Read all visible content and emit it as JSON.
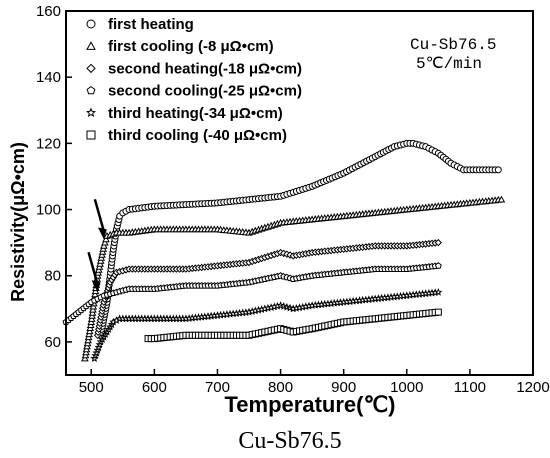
{
  "chart_data": {
    "type": "scatter",
    "xlabel": "Temperature(℃)",
    "ylabel": "Resistivity(μΩ•cm)",
    "xlim": [
      460,
      1200
    ],
    "ylim": [
      50,
      160
    ],
    "x_ticks": [
      "500",
      "600",
      "700",
      "800",
      "900",
      "1000",
      "1100",
      "1200"
    ],
    "y_ticks": [
      "60",
      "80",
      "100",
      "120",
      "140",
      "160"
    ],
    "annotation": [
      "Cu-Sb76.5",
      "5℃/min"
    ],
    "caption": "Cu-Sb76.5",
    "grid": false,
    "legend_position": "top-left",
    "arrows": [
      {
        "x": 520,
        "y": 91
      },
      {
        "x": 510,
        "y": 75
      }
    ],
    "series": [
      {
        "name": "first heating",
        "marker": "circle",
        "x": [
          515,
          525,
          530,
          535,
          540,
          545,
          550,
          560,
          600,
          700,
          800,
          850,
          900,
          950,
          980,
          1000,
          1010,
          1030,
          1050,
          1070,
          1090,
          1110,
          1130,
          1145
        ],
        "y": [
          62,
          72,
          80,
          88,
          94,
          98,
          99,
          100,
          101,
          102,
          104,
          107,
          111,
          116,
          119,
          120,
          120,
          119,
          117,
          114,
          112,
          112,
          112,
          112
        ]
      },
      {
        "name": "first cooling (-8 μΩ•cm)",
        "marker": "triangle",
        "x": [
          490,
          500,
          510,
          520,
          525,
          540,
          560,
          600,
          700,
          750,
          800,
          850,
          900,
          950,
          1000,
          1050,
          1100,
          1150
        ],
        "y": [
          55,
          66,
          80,
          89,
          92,
          93,
          93,
          94,
          94,
          93,
          96,
          97,
          98,
          99,
          100,
          101,
          102,
          103
        ]
      },
      {
        "name": "second heating(-18 μΩ•cm)",
        "marker": "diamond",
        "x": [
          510,
          520,
          530,
          540,
          560,
          600,
          650,
          700,
          750,
          800,
          820,
          850,
          900,
          950,
          1000,
          1050
        ],
        "y": [
          62,
          72,
          78,
          81,
          82,
          82,
          82,
          83,
          84,
          87,
          86,
          87,
          88,
          89,
          89,
          90
        ]
      },
      {
        "name": "second cooling(-25 μΩ•cm)",
        "marker": "pentagon",
        "x": [
          460,
          480,
          500,
          520,
          540,
          560,
          600,
          650,
          700,
          750,
          800,
          820,
          850,
          900,
          950,
          1000,
          1050
        ],
        "y": [
          66,
          69,
          72,
          74,
          75,
          76,
          76,
          77,
          77,
          78,
          80,
          79,
          80,
          81,
          82,
          82,
          83
        ]
      },
      {
        "name": "third heating(-34 μΩ•cm)",
        "marker": "star",
        "x": [
          505,
          515,
          525,
          535,
          545,
          560,
          600,
          650,
          700,
          750,
          800,
          820,
          850,
          900,
          950,
          1000,
          1050
        ],
        "y": [
          55,
          60,
          63,
          66,
          67,
          67,
          67,
          67,
          68,
          69,
          71,
          70,
          71,
          72,
          73,
          74,
          75
        ]
      },
      {
        "name": "third cooling (-40 μΩ•cm)",
        "marker": "square",
        "x": [
          590,
          600,
          650,
          700,
          750,
          800,
          820,
          850,
          900,
          950,
          1000,
          1050
        ],
        "y": [
          61,
          61,
          62,
          62,
          62,
          64,
          63,
          64,
          66,
          67,
          68,
          69
        ]
      }
    ]
  }
}
